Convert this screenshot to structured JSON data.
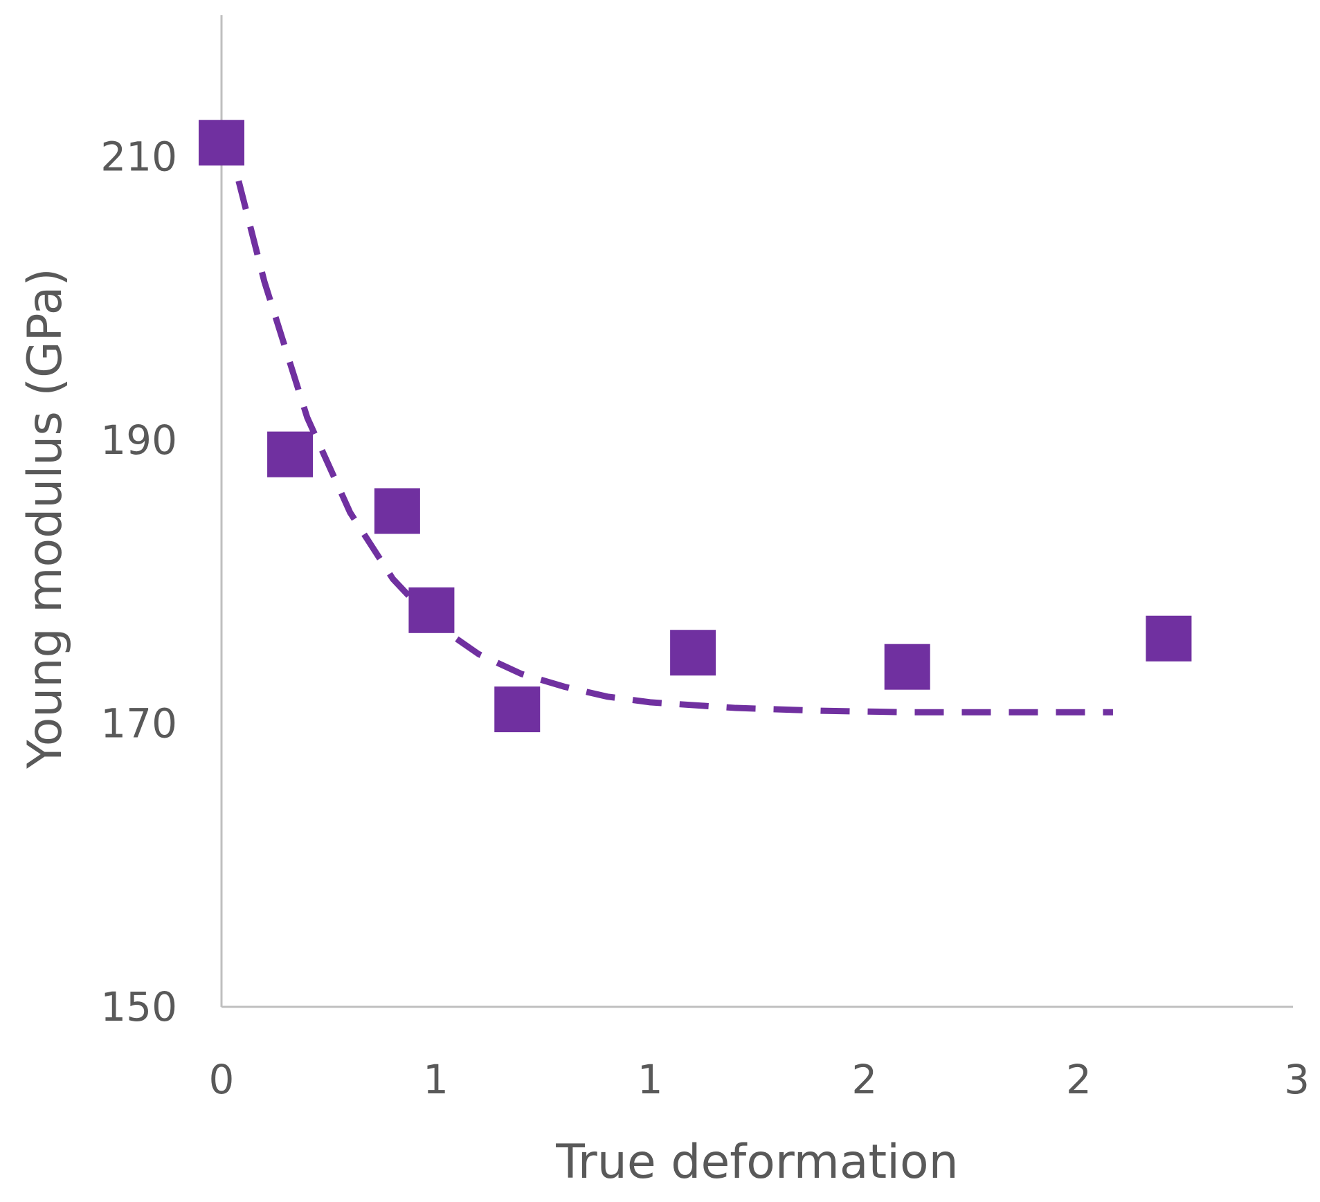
{
  "chart_data": {
    "type": "scatter",
    "title": "",
    "xlabel": "True deformation",
    "ylabel": "Young modulus (GPa)",
    "xlim": [
      0,
      2.5
    ],
    "ylim": [
      150,
      220
    ],
    "x_tick_labels": [
      "0",
      "1",
      "1",
      "2",
      "2",
      "3"
    ],
    "x_tick_values": [
      0,
      0.5,
      1.0,
      1.5,
      2.0,
      2.5
    ],
    "y_tick_labels": [
      "150",
      "170",
      "190",
      "210"
    ],
    "y_tick_values": [
      150,
      170,
      190,
      210
    ],
    "grid": false,
    "marker": "square",
    "series": [
      {
        "type": "scatter",
        "x": [
          0.0,
          0.16,
          0.41,
          0.49,
          0.69,
          1.1,
          1.6,
          2.21
        ],
        "y": [
          211,
          189,
          185,
          178,
          171,
          175,
          174,
          176
        ]
      },
      {
        "type": "line",
        "style": "dashed",
        "x": [
          0.04,
          0.1,
          0.2,
          0.3,
          0.4,
          0.5,
          0.6,
          0.7,
          0.8,
          0.9,
          1.0,
          1.2,
          1.4,
          1.6,
          1.8,
          2.0,
          2.08
        ],
        "y": [
          208.3,
          201.2,
          191.6,
          184.9,
          180.2,
          177.0,
          174.9,
          173.5,
          172.6,
          171.9,
          171.5,
          171.1,
          170.9,
          170.8,
          170.8,
          170.8,
          170.8
        ]
      }
    ],
    "colors": {
      "marker": "#7030A0",
      "line": "#7030A0",
      "axis": "#BFBFBF",
      "text": "#595959"
    }
  }
}
